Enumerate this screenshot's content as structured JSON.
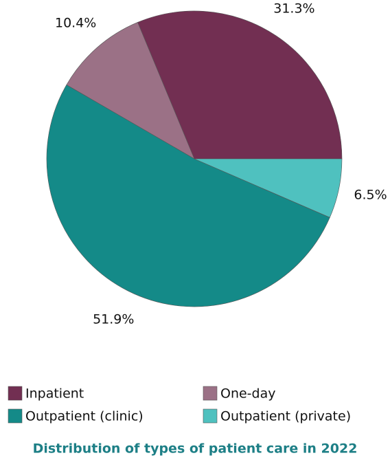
{
  "chart_data": {
    "type": "pie",
    "title": "Distribution of types of patient care in 2022",
    "categories": [
      "Inpatient",
      "One-day",
      "Outpatient (clinic)",
      "Outpatient (private)"
    ],
    "values": [
      31.3,
      10.4,
      51.9,
      6.5
    ],
    "value_labels": [
      "31.3%",
      "10.4%",
      "51.9%",
      "6.5%"
    ],
    "colors": [
      "#722f52",
      "#9b7186",
      "#148a88",
      "#4fc1bf"
    ],
    "legend": "bottom"
  }
}
